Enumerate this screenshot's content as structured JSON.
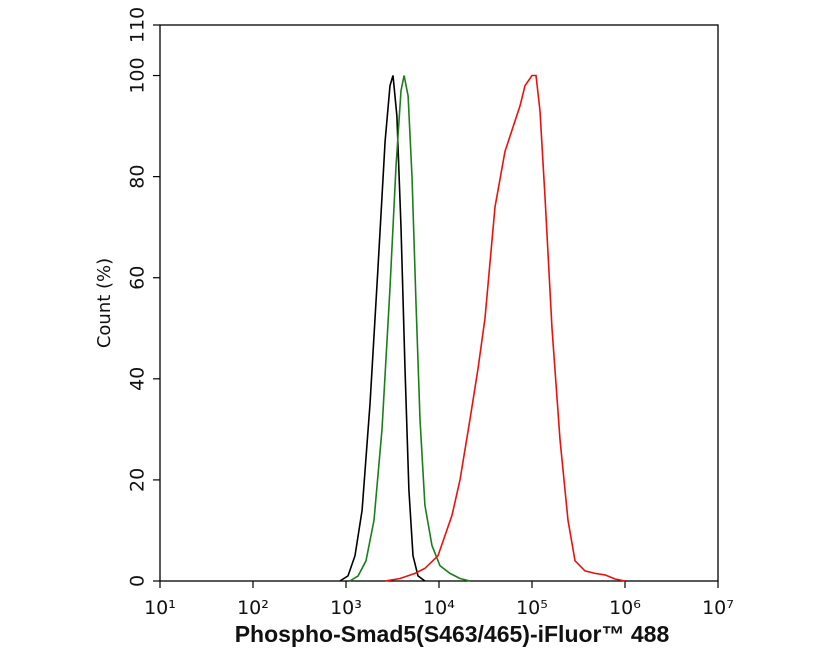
{
  "chart_data": {
    "type": "line",
    "xlabel": "Phospho-Smad5(S463/465)-iFluor™ 488",
    "ylabel": "Count  (%)",
    "xscale": "log",
    "xlim": [
      10,
      10000000
    ],
    "ylim": [
      0,
      110
    ],
    "xticks": [
      {
        "value": 10,
        "label": "10¹"
      },
      {
        "value": 100,
        "label": "10²"
      },
      {
        "value": 1000,
        "label": "10³"
      },
      {
        "value": 10000,
        "label": "10⁴"
      },
      {
        "value": 100000,
        "label": "10⁵"
      },
      {
        "value": 1000000,
        "label": "10⁶"
      },
      {
        "value": 10000000,
        "label": "10⁷"
      }
    ],
    "yticks": [
      0,
      20,
      40,
      60,
      80,
      100,
      110
    ],
    "series": [
      {
        "color": "#000000",
        "x": [
          860,
          1050,
          1250,
          1490,
          1810,
          2210,
          2630,
          2970,
          3200,
          3530,
          3900,
          4310,
          4750,
          5250,
          5940,
          7060
        ],
        "values": [
          0,
          1,
          5,
          14,
          35,
          62,
          87,
          98,
          100,
          92,
          70,
          42,
          18,
          5,
          1,
          0
        ]
      },
      {
        "color": "#1a7f1a",
        "x": [
          1100,
          1350,
          1640,
          2000,
          2440,
          2970,
          3450,
          3900,
          4210,
          4650,
          5130,
          5660,
          6250,
          7060,
          8410,
          10260,
          13120,
          16830,
          21530
        ],
        "values": [
          0,
          1,
          4,
          12,
          30,
          58,
          82,
          97,
          100,
          96,
          80,
          55,
          32,
          15,
          7,
          3,
          1.5,
          0.5,
          0
        ]
      },
      {
        "color": "#e8120c",
        "x": [
          2630,
          3810,
          5520,
          7060,
          9750,
          11610,
          13800,
          16830,
          21530,
          26260,
          31260,
          39990,
          51280,
          65610,
          74300,
          84140,
          100000,
          110400,
          121900,
          138000,
          164100,
          200000,
          243800,
          289800,
          371500,
          475300,
          609500,
          780000,
          1000000
        ],
        "values": [
          0,
          0.5,
          1.5,
          2.5,
          5,
          9,
          13,
          20,
          32,
          42,
          52,
          74,
          85,
          91,
          94,
          98,
          100,
          100,
          93,
          76,
          50,
          28,
          12,
          4,
          2,
          1.5,
          1.2,
          0.4,
          0
        ]
      }
    ]
  }
}
